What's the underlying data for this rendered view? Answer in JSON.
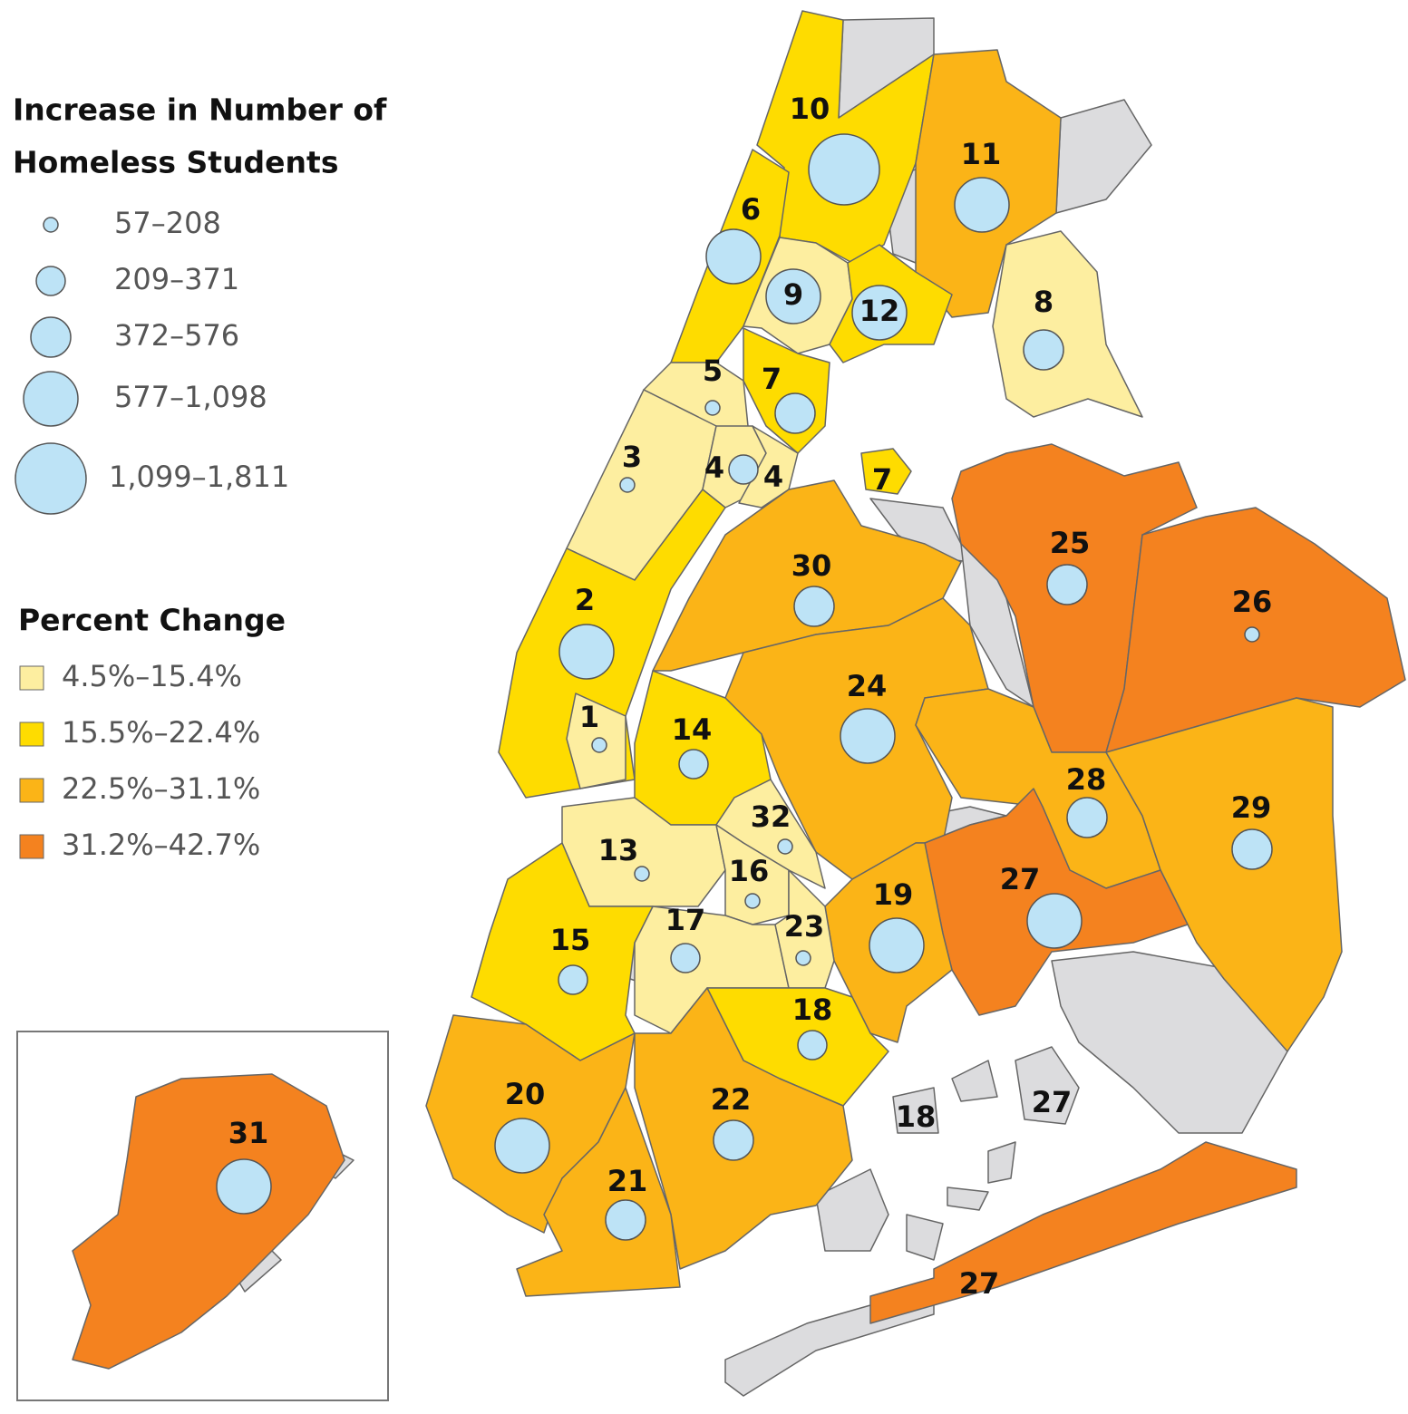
{
  "legend": {
    "size_title": [
      "Increase in Number of",
      "Homeless Students"
    ],
    "sizes": [
      "57–208",
      "209–371",
      "372–576",
      "577–1,098",
      "1,099–1,811"
    ],
    "color_title": "Percent Change",
    "colors": [
      {
        "label": "4.5%–15.4%",
        "color": "#fdeea0"
      },
      {
        "label": "15.5%–22.4%",
        "color": "#fedc00"
      },
      {
        "label": "22.5%–31.1%",
        "color": "#fbb417"
      },
      {
        "label": "31.2%–42.7%",
        "color": "#f4821f"
      }
    ]
  },
  "districts": [
    {
      "label": "10",
      "increase": "1,099–1,811",
      "change": "15.5%–22.4%"
    },
    {
      "label": "11",
      "increase": "577–1,098",
      "change": "22.5%–31.1%"
    },
    {
      "label": "6",
      "increase": "577–1,098",
      "change": "15.5%–22.4%"
    },
    {
      "label": "9",
      "increase": "577–1,098",
      "change": "4.5%–15.4%"
    },
    {
      "label": "12",
      "increase": "577–1,098",
      "change": "15.5%–22.4%"
    },
    {
      "label": "8",
      "increase": "372–576",
      "change": "4.5%–15.4%"
    },
    {
      "label": "5",
      "increase": "57–208",
      "change": "4.5%–15.4%"
    },
    {
      "label": "7",
      "increase": "372–576",
      "change": "15.5%–22.4%"
    },
    {
      "label": "3",
      "increase": "57–208",
      "change": "4.5%–15.4%"
    },
    {
      "label": "4",
      "increase": "209–371",
      "change": "4.5%–15.4%"
    },
    {
      "label": "4",
      "change": "4.5%–15.4%"
    },
    {
      "label": "7",
      "change": "15.5%–22.4%"
    },
    {
      "label": "30",
      "increase": "372–576",
      "change": "22.5%–31.1%"
    },
    {
      "label": "25",
      "increase": "372–576",
      "change": "31.2%–42.7%"
    },
    {
      "label": "26",
      "increase": "57–208",
      "change": "31.2%–42.7%"
    },
    {
      "label": "2",
      "increase": "577–1,098",
      "change": "15.5%–22.4%"
    },
    {
      "label": "24",
      "increase": "577–1,098",
      "change": "22.5%–31.1%"
    },
    {
      "label": "1",
      "increase": "57–208",
      "change": "4.5%–15.4%"
    },
    {
      "label": "14",
      "increase": "209–371",
      "change": "15.5%–22.4%"
    },
    {
      "label": "28",
      "increase": "372–576",
      "change": "22.5%–31.1%"
    },
    {
      "label": "29",
      "increase": "372–576",
      "change": "22.5%–31.1%"
    },
    {
      "label": "32",
      "increase": "57–208",
      "change": "4.5%–15.4%"
    },
    {
      "label": "13",
      "increase": "57–208",
      "change": "4.5%–15.4%"
    },
    {
      "label": "16",
      "increase": "57–208",
      "change": "4.5%–15.4%"
    },
    {
      "label": "27",
      "increase": "577–1,098",
      "change": "31.2%–42.7%"
    },
    {
      "label": "19",
      "increase": "577–1,098",
      "change": "22.5%–31.1%"
    },
    {
      "label": "17",
      "increase": "209–371",
      "change": "4.5%–15.4%"
    },
    {
      "label": "23",
      "increase": "57–208",
      "change": "4.5%–15.4%"
    },
    {
      "label": "15",
      "increase": "209–371",
      "change": "15.5%–22.4%"
    },
    {
      "label": "18",
      "increase": "209–371",
      "change": "15.5%–22.4%"
    },
    {
      "label": "20",
      "increase": "577–1,098",
      "change": "22.5%–31.1%"
    },
    {
      "label": "22",
      "increase": "372–576",
      "change": "22.5%–31.1%"
    },
    {
      "label": "21",
      "increase": "372–576",
      "change": "22.5%–31.1%"
    },
    {
      "label": "31",
      "increase": "577–1,098",
      "change": "31.2%–42.7%"
    },
    {
      "label": "18"
    },
    {
      "label": "27"
    },
    {
      "label": "27",
      "change": "31.2%–42.7%"
    }
  ]
}
